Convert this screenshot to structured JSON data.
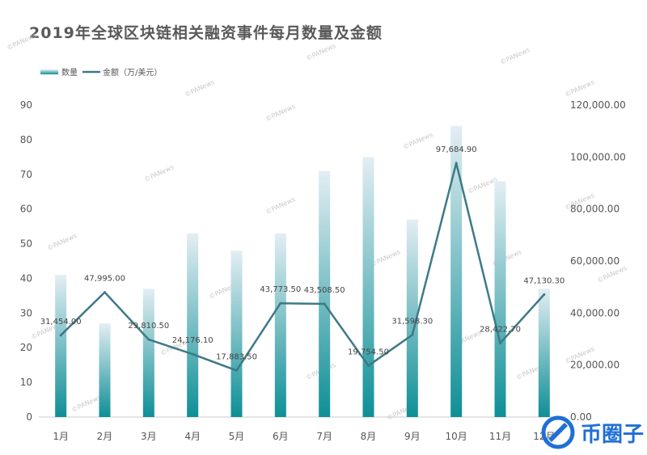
{
  "title": "2019年全球区块链相关融资事件每月数量及金额",
  "watermark": "©PANews",
  "logo": {
    "text": "币圈子"
  },
  "colors": {
    "bar_top": "#e3eef3",
    "bar_bottom": "#0e8f96",
    "line": "#3d7a86",
    "axis": "#c8c8c8"
  },
  "chart_data": {
    "type": "bar",
    "categories": [
      "1月",
      "2月",
      "3月",
      "4月",
      "5月",
      "6月",
      "7月",
      "8月",
      "9月",
      "10月",
      "11月",
      "12月"
    ],
    "series": [
      {
        "name": "数量",
        "type": "bar",
        "axis": "left",
        "values": [
          41,
          27,
          37,
          53,
          48,
          53,
          71,
          75,
          57,
          84,
          68,
          37
        ]
      },
      {
        "name": "金额（万/美元）",
        "type": "line",
        "axis": "right",
        "values": [
          31454.0,
          47995.0,
          29810.5,
          24176.1,
          17883.5,
          43773.5,
          43508.5,
          19754.5,
          31598.3,
          97684.9,
          28422.7,
          47130.3
        ],
        "labels": [
          "31,454.00",
          "47,995.00",
          "29,810.50",
          "24,176.10",
          "17,883.50",
          "43,773.50",
          "43,508.50",
          "19,754.50",
          "31,598.30",
          "97,684.90",
          "28,422.70",
          "47,130.30"
        ]
      }
    ],
    "y_left": {
      "min": 0,
      "max": 90,
      "step": 10,
      "ticks": [
        "0",
        "10",
        "20",
        "30",
        "40",
        "50",
        "60",
        "70",
        "80",
        "90"
      ]
    },
    "y_right": {
      "min": 0,
      "max": 120000,
      "step": 20000,
      "ticks": [
        "0.00",
        "20,000.00",
        "40,000.00",
        "60,000.00",
        "80,000.00",
        "100,000.00",
        "120,000.00"
      ]
    },
    "legend_position": "top-left",
    "grid": false
  }
}
